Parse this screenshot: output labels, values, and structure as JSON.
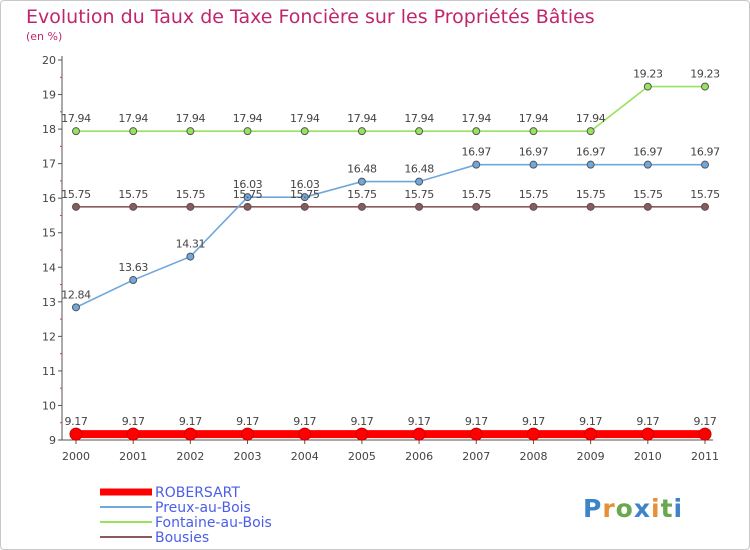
{
  "chart_data": {
    "type": "line",
    "title": "Evolution du Taux de Taxe Foncière sur les Propriétés Bâties",
    "ylabel": "(en %)",
    "xlabel": "",
    "x": [
      "2000",
      "2001",
      "2002",
      "2003",
      "2004",
      "2005",
      "2006",
      "2007",
      "2008",
      "2009",
      "2010",
      "2011"
    ],
    "ylim": [
      9,
      20
    ],
    "yticks": [
      "9",
      "10",
      "11",
      "12",
      "13",
      "14",
      "15",
      "16",
      "17",
      "18",
      "19",
      "20"
    ],
    "series": [
      {
        "name": "ROBERSART",
        "color": "#ff0000",
        "values": [
          9.17,
          9.17,
          9.17,
          9.17,
          9.17,
          9.17,
          9.17,
          9.17,
          9.17,
          9.17,
          9.17,
          9.17
        ],
        "labels": [
          "9.17",
          "9.17",
          "9.17",
          "9.17",
          "9.17",
          "9.17",
          "9.17",
          "9.17",
          "9.17",
          "9.17",
          "9.17",
          "9.17"
        ]
      },
      {
        "name": "Preux-au-Bois",
        "color": "#6fa8dc",
        "values": [
          12.84,
          13.63,
          14.31,
          16.03,
          16.03,
          16.48,
          16.48,
          16.97,
          16.97,
          16.97,
          16.97,
          16.97
        ],
        "labels": [
          "12.84",
          "13.63",
          "14.31",
          "16.03",
          "16.03",
          "16.48",
          "16.48",
          "16.97",
          "16.97",
          "16.97",
          "16.97",
          "16.97"
        ]
      },
      {
        "name": "Fontaine-au-Bois",
        "color": "#99e25e",
        "values": [
          17.94,
          17.94,
          17.94,
          17.94,
          17.94,
          17.94,
          17.94,
          17.94,
          17.94,
          17.94,
          19.23,
          19.23
        ],
        "labels": [
          "17.94",
          "17.94",
          "17.94",
          "17.94",
          "17.94",
          "17.94",
          "17.94",
          "17.94",
          "17.94",
          "17.94",
          "19.23",
          "19.23"
        ]
      },
      {
        "name": "Bousies",
        "color": "#8b5a5a",
        "values": [
          15.75,
          15.75,
          15.75,
          15.75,
          15.75,
          15.75,
          15.75,
          15.75,
          15.75,
          15.75,
          15.75,
          15.75
        ],
        "labels": [
          "15.75",
          "15.75",
          "15.75",
          "15.75",
          "15.75",
          "15.75",
          "15.75",
          "15.75",
          "15.75",
          "15.75",
          "15.75",
          "15.75"
        ]
      }
    ],
    "legend_position": "bottom-left",
    "grid": false
  },
  "logo": {
    "text": "Proxiti",
    "letters": [
      "P",
      "r",
      "o",
      "x",
      "i",
      "t",
      "i"
    ],
    "colors": [
      "#3d85c6",
      "#e69138",
      "#6aa84f",
      "#3d85c6",
      "#e69138",
      "#6aa84f",
      "#3d85c6"
    ]
  },
  "colors": {
    "title": "#c0266d",
    "axis": "#555555",
    "tick_text": "#444444",
    "legend_text": "#4a5ee8"
  }
}
